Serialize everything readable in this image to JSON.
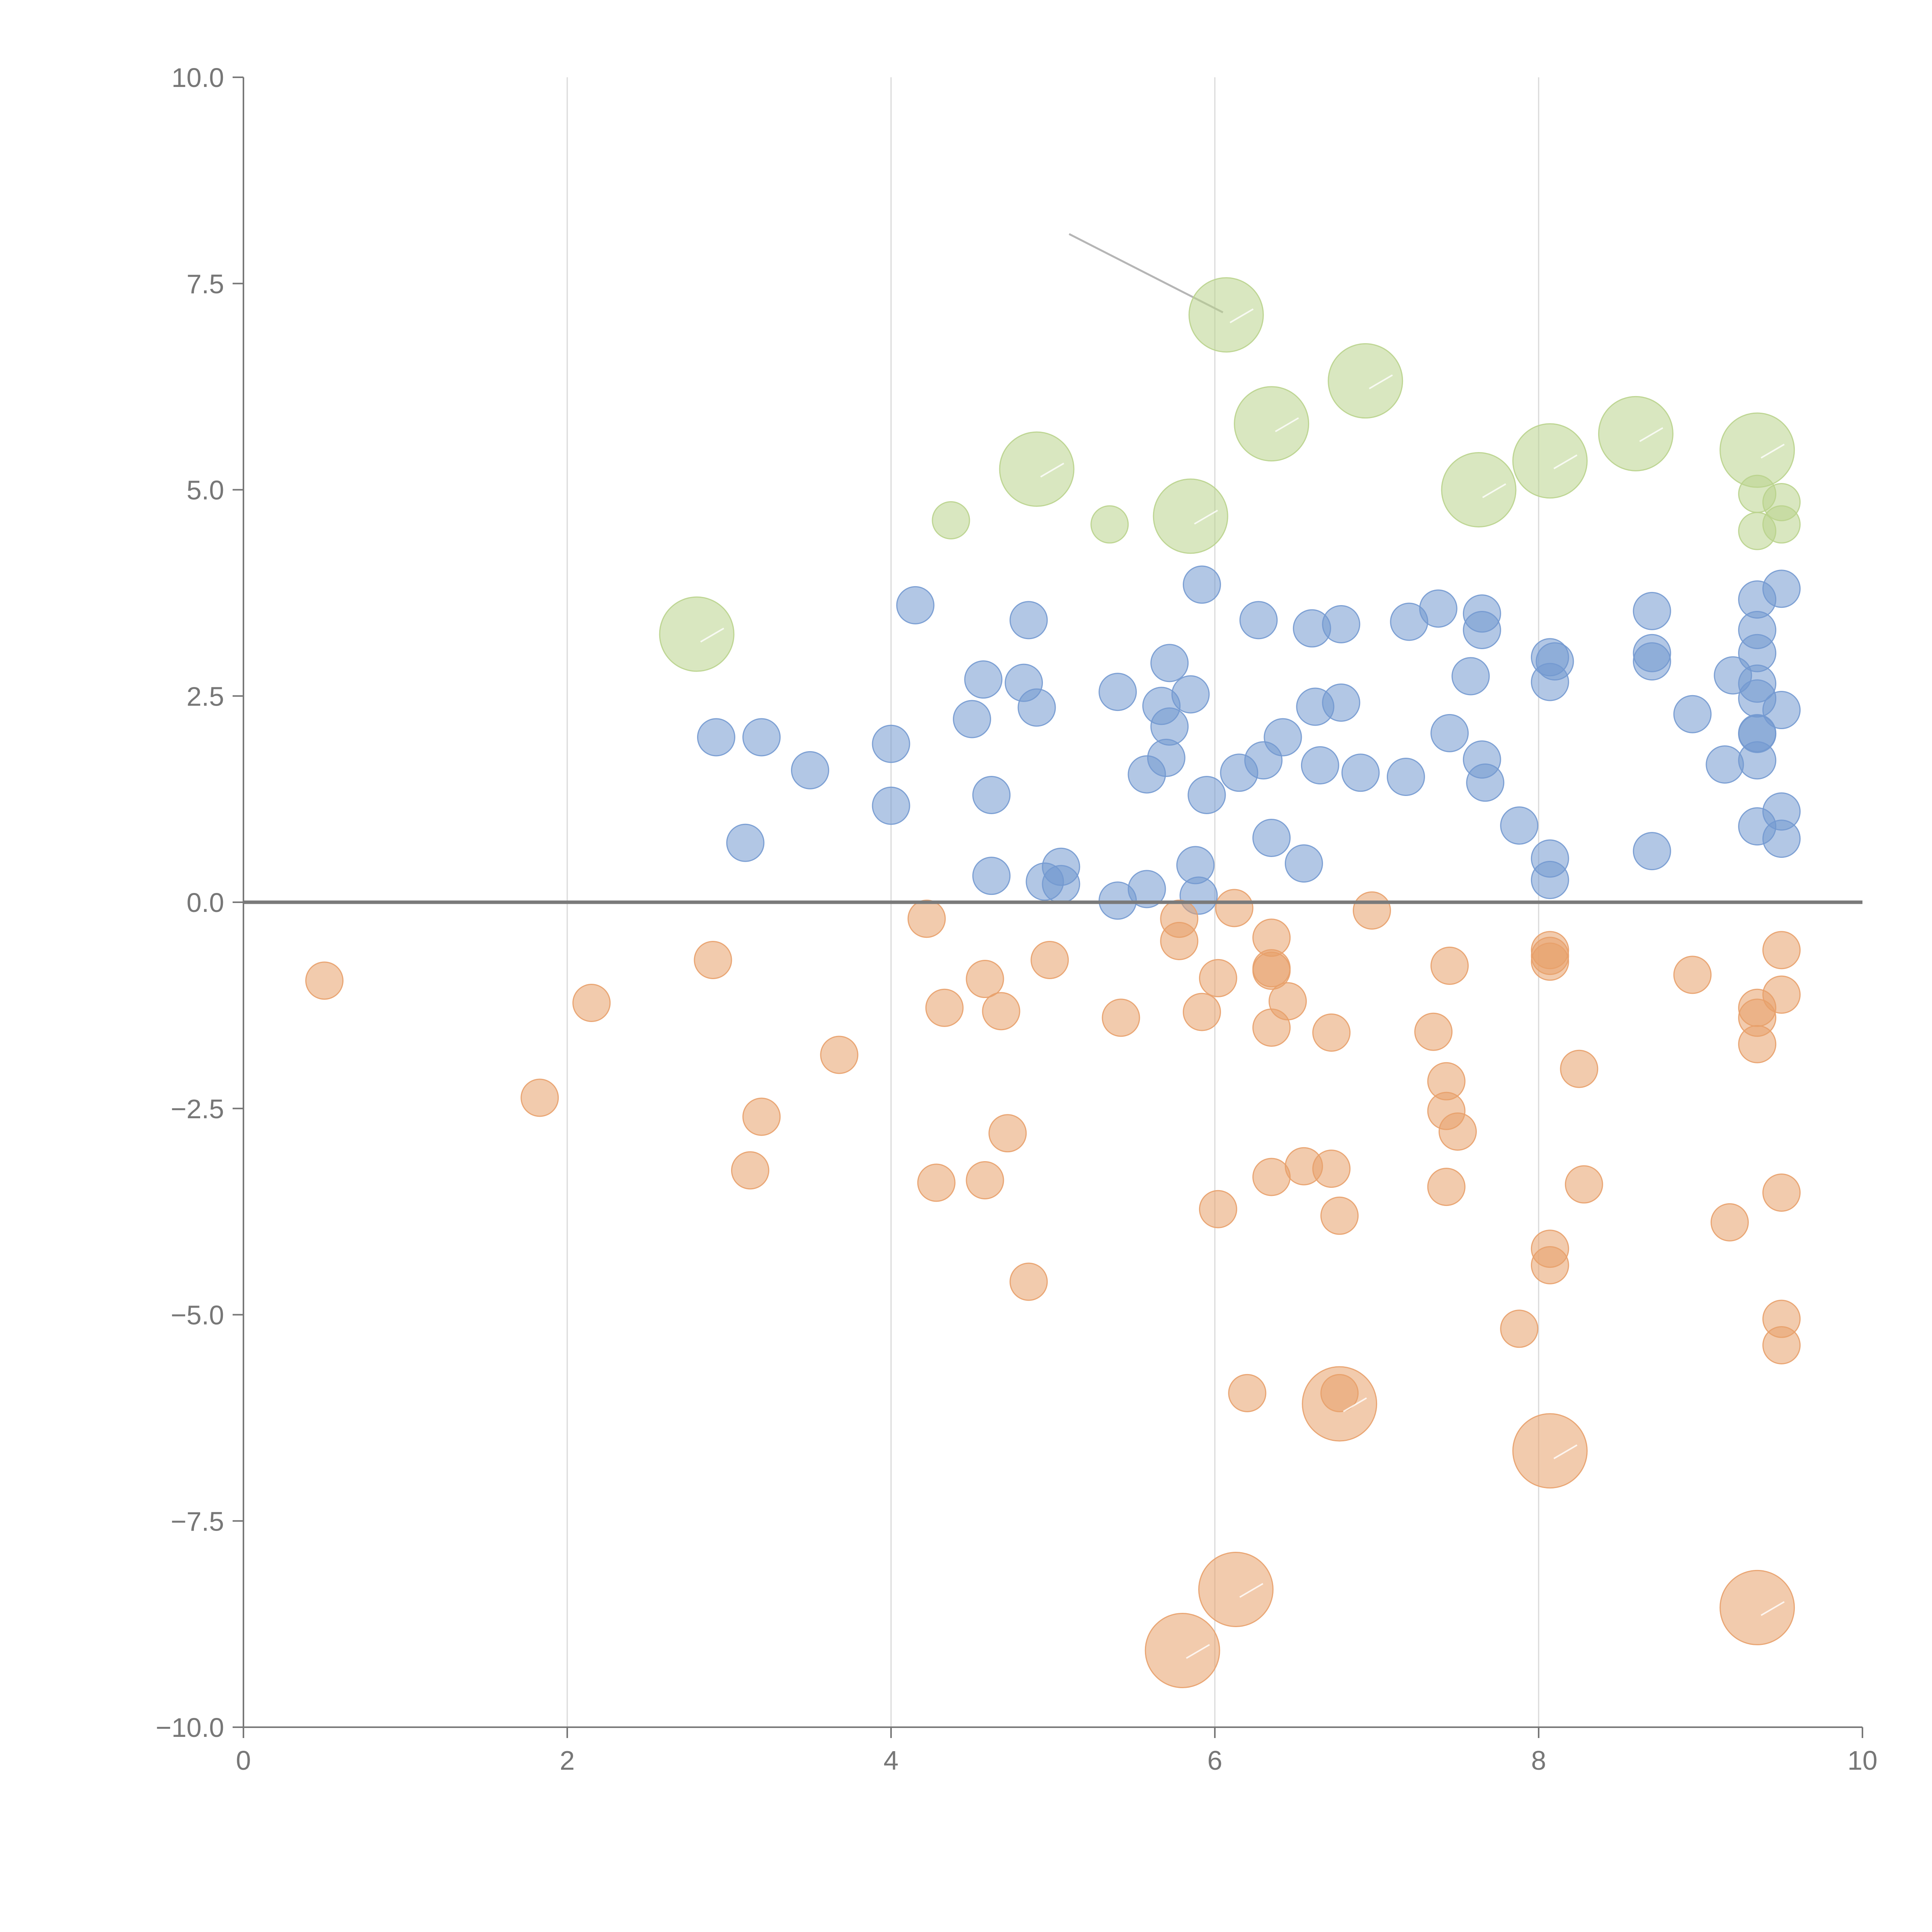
{
  "chart_data": {
    "type": "scatter",
    "title": "",
    "xlabel": "",
    "ylabel": "",
    "xlim": [
      0,
      10
    ],
    "ylim": [
      -10,
      10
    ],
    "grid": "vertical",
    "zero_line": true,
    "x_ticks": [
      "0",
      "2",
      "4",
      "6",
      "8",
      "10"
    ],
    "x_tick_values": [
      0,
      2,
      4,
      6,
      8,
      10
    ],
    "y_ticks": [
      "10.0",
      "7.5",
      "5.0",
      "2.5",
      "0.0",
      "−2.5",
      "−5.0",
      "−7.5",
      "−10.0"
    ],
    "y_tick_values": [
      10,
      7.5,
      5,
      2.5,
      0,
      -2.5,
      -5,
      -7.5,
      -10
    ],
    "colors": {
      "blue": "#7399d0",
      "orange": "#e8a06a",
      "green": "#b9d38c",
      "axis": "#777777",
      "grid": "#d9d9d9"
    },
    "series": [
      {
        "name": "blue",
        "color": "#7399d0",
        "points": [
          [
            2.92,
            2.0,
            1
          ],
          [
            3.2,
            2.0,
            1
          ],
          [
            3.1,
            0.72,
            1
          ],
          [
            3.5,
            1.6,
            1
          ],
          [
            4.0,
            1.92,
            1
          ],
          [
            4.0,
            1.17,
            1
          ],
          [
            4.15,
            3.6,
            1
          ],
          [
            4.5,
            2.22,
            1
          ],
          [
            4.57,
            2.7,
            1
          ],
          [
            4.62,
            1.3,
            1
          ],
          [
            4.62,
            0.32,
            1
          ],
          [
            4.85,
            3.42,
            1
          ],
          [
            4.82,
            2.66,
            1
          ],
          [
            4.9,
            2.36,
            1
          ],
          [
            5.05,
            0.43,
            1
          ],
          [
            4.95,
            0.25,
            1
          ],
          [
            5.05,
            0.22,
            1
          ],
          [
            5.4,
            2.55,
            1
          ],
          [
            5.4,
            0.02,
            1
          ],
          [
            5.58,
            1.55,
            1
          ],
          [
            5.58,
            0.16,
            1
          ],
          [
            5.67,
            2.38,
            1
          ],
          [
            5.72,
            2.9,
            1
          ],
          [
            5.72,
            2.13,
            1
          ],
          [
            5.7,
            1.75,
            1
          ],
          [
            5.85,
            2.52,
            1
          ],
          [
            5.92,
            3.85,
            1
          ],
          [
            5.88,
            0.45,
            1
          ],
          [
            5.9,
            0.08,
            1
          ],
          [
            5.95,
            1.3,
            1
          ],
          [
            6.15,
            1.57,
            1
          ],
          [
            6.27,
            3.42,
            1
          ],
          [
            6.3,
            1.72,
            1
          ],
          [
            6.35,
            0.78,
            1
          ],
          [
            6.42,
            2.0,
            1
          ],
          [
            6.55,
            0.47,
            1
          ],
          [
            6.6,
            3.32,
            1
          ],
          [
            6.62,
            2.37,
            1
          ],
          [
            6.65,
            1.66,
            1
          ],
          [
            6.78,
            2.42,
            1
          ],
          [
            6.78,
            3.37,
            1
          ],
          [
            6.9,
            1.57,
            1
          ],
          [
            7.2,
            3.4,
            1
          ],
          [
            7.18,
            1.52,
            1
          ],
          [
            7.38,
            3.56,
            1
          ],
          [
            7.45,
            2.05,
            1
          ],
          [
            7.58,
            2.74,
            1
          ],
          [
            7.65,
            3.5,
            1
          ],
          [
            7.65,
            3.3,
            1
          ],
          [
            7.65,
            1.73,
            1
          ],
          [
            7.67,
            1.45,
            1
          ],
          [
            7.88,
            0.93,
            1
          ],
          [
            8.07,
            2.97,
            1
          ],
          [
            8.1,
            2.92,
            1
          ],
          [
            8.07,
            2.67,
            1
          ],
          [
            8.07,
            0.53,
            1
          ],
          [
            8.07,
            0.27,
            1
          ],
          [
            8.7,
            3.53,
            1
          ],
          [
            8.7,
            3.02,
            1
          ],
          [
            8.7,
            2.92,
            1
          ],
          [
            8.7,
            0.62,
            1
          ],
          [
            8.95,
            2.28,
            1
          ],
          [
            9.15,
            1.67,
            1
          ],
          [
            9.2,
            2.75,
            1
          ],
          [
            9.35,
            3.67,
            1
          ],
          [
            9.35,
            3.3,
            1
          ],
          [
            9.35,
            3.02,
            1
          ],
          [
            9.35,
            2.65,
            1
          ],
          [
            9.35,
            2.47,
            1
          ],
          [
            9.35,
            2.05,
            1
          ],
          [
            9.35,
            2.04,
            1
          ],
          [
            9.35,
            1.72,
            1
          ],
          [
            9.35,
            0.92,
            1
          ],
          [
            9.5,
            3.8,
            1
          ],
          [
            9.5,
            2.33,
            1
          ],
          [
            9.5,
            1.1,
            1
          ],
          [
            9.5,
            0.77,
            1
          ]
        ]
      },
      {
        "name": "orange",
        "color": "#e8a06a",
        "points": [
          [
            0.5,
            -0.95,
            1
          ],
          [
            1.83,
            -2.37,
            1
          ],
          [
            2.15,
            -1.22,
            1
          ],
          [
            2.9,
            -0.7,
            1
          ],
          [
            3.13,
            -3.25,
            1
          ],
          [
            3.2,
            -2.6,
            1
          ],
          [
            3.68,
            -1.85,
            1
          ],
          [
            4.22,
            -0.2,
            1
          ],
          [
            4.28,
            -3.4,
            1
          ],
          [
            4.33,
            -1.28,
            1
          ],
          [
            4.58,
            -3.37,
            1
          ],
          [
            4.58,
            -0.93,
            1
          ],
          [
            4.68,
            -1.32,
            1
          ],
          [
            4.72,
            -2.8,
            1
          ],
          [
            4.85,
            -4.6,
            1
          ],
          [
            4.98,
            -0.7,
            1
          ],
          [
            5.42,
            -1.4,
            1
          ],
          [
            5.78,
            -0.2,
            1
          ],
          [
            5.78,
            -0.47,
            1
          ],
          [
            5.92,
            -1.33,
            1
          ],
          [
            6.02,
            -0.92,
            1
          ],
          [
            6.02,
            -3.72,
            1
          ],
          [
            6.12,
            -0.07,
            1
          ],
          [
            6.2,
            -5.95,
            1
          ],
          [
            6.35,
            -0.43,
            1
          ],
          [
            6.35,
            -0.8,
            1
          ],
          [
            6.35,
            -0.83,
            1
          ],
          [
            6.35,
            -1.52,
            1
          ],
          [
            6.35,
            -3.33,
            1
          ],
          [
            6.45,
            -1.2,
            1
          ],
          [
            6.55,
            -3.2,
            1
          ],
          [
            6.72,
            -1.58,
            1
          ],
          [
            6.72,
            -3.23,
            1
          ],
          [
            6.77,
            -3.8,
            1
          ],
          [
            6.77,
            -5.95,
            1
          ],
          [
            6.97,
            -0.1,
            1
          ],
          [
            7.35,
            -1.57,
            1
          ],
          [
            7.43,
            -2.17,
            1
          ],
          [
            7.43,
            -2.53,
            1
          ],
          [
            7.43,
            -3.45,
            1
          ],
          [
            7.45,
            -0.77,
            1
          ],
          [
            7.5,
            -2.78,
            1
          ],
          [
            7.88,
            -5.17,
            1
          ],
          [
            8.07,
            -0.58,
            1
          ],
          [
            8.07,
            -0.65,
            1
          ],
          [
            8.07,
            -0.72,
            1
          ],
          [
            8.07,
            -4.2,
            1
          ],
          [
            8.07,
            -4.4,
            1
          ],
          [
            8.25,
            -2.02,
            1
          ],
          [
            8.28,
            -3.42,
            1
          ],
          [
            8.95,
            -0.88,
            1
          ],
          [
            9.18,
            -3.88,
            1
          ],
          [
            9.35,
            -1.28,
            1
          ],
          [
            9.35,
            -1.4,
            1
          ],
          [
            9.35,
            -1.72,
            1
          ],
          [
            9.5,
            -0.58,
            1
          ],
          [
            9.5,
            -1.12,
            1
          ],
          [
            9.5,
            -3.52,
            1
          ],
          [
            9.5,
            -5.05,
            1
          ],
          [
            9.5,
            -5.37,
            1
          ],
          [
            6.77,
            -6.08,
            2
          ],
          [
            8.07,
            -6.65,
            2
          ],
          [
            6.13,
            -8.33,
            2
          ],
          [
            5.8,
            -9.07,
            2
          ],
          [
            9.35,
            -8.55,
            2
          ]
        ]
      },
      {
        "name": "green",
        "color": "#b9d38c",
        "points": [
          [
            4.37,
            4.63,
            1
          ],
          [
            5.35,
            4.58,
            1
          ],
          [
            9.35,
            4.95,
            1
          ],
          [
            9.35,
            4.5,
            1
          ],
          [
            9.5,
            4.85,
            1
          ],
          [
            9.5,
            4.58,
            1
          ],
          [
            2.8,
            3.25,
            2
          ],
          [
            4.9,
            5.25,
            2
          ],
          [
            5.85,
            4.68,
            2
          ],
          [
            6.07,
            7.12,
            2
          ],
          [
            6.35,
            5.8,
            2
          ],
          [
            6.93,
            6.32,
            2
          ],
          [
            7.63,
            5.0,
            2
          ],
          [
            8.07,
            5.35,
            2
          ],
          [
            8.6,
            5.68,
            2
          ],
          [
            9.35,
            5.48,
            2
          ]
        ]
      }
    ],
    "annotations": [
      {
        "x1": 5.1,
        "y1": 8.1,
        "x2": 6.05,
        "y2": 7.15
      }
    ]
  }
}
